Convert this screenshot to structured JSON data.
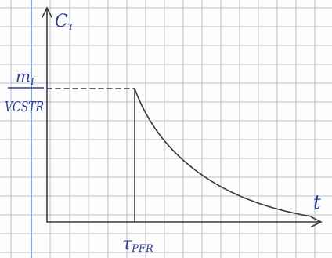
{
  "y_axis": {
    "symbol": "C",
    "subscript": "T"
  },
  "x_axis": {
    "symbol": "t"
  },
  "y_marker": {
    "numerator_symbol": "m",
    "numerator_subscript": "I",
    "denominator": "VCSTR"
  },
  "x_marker": {
    "symbol": "τ",
    "subscript": "PFR"
  }
}
